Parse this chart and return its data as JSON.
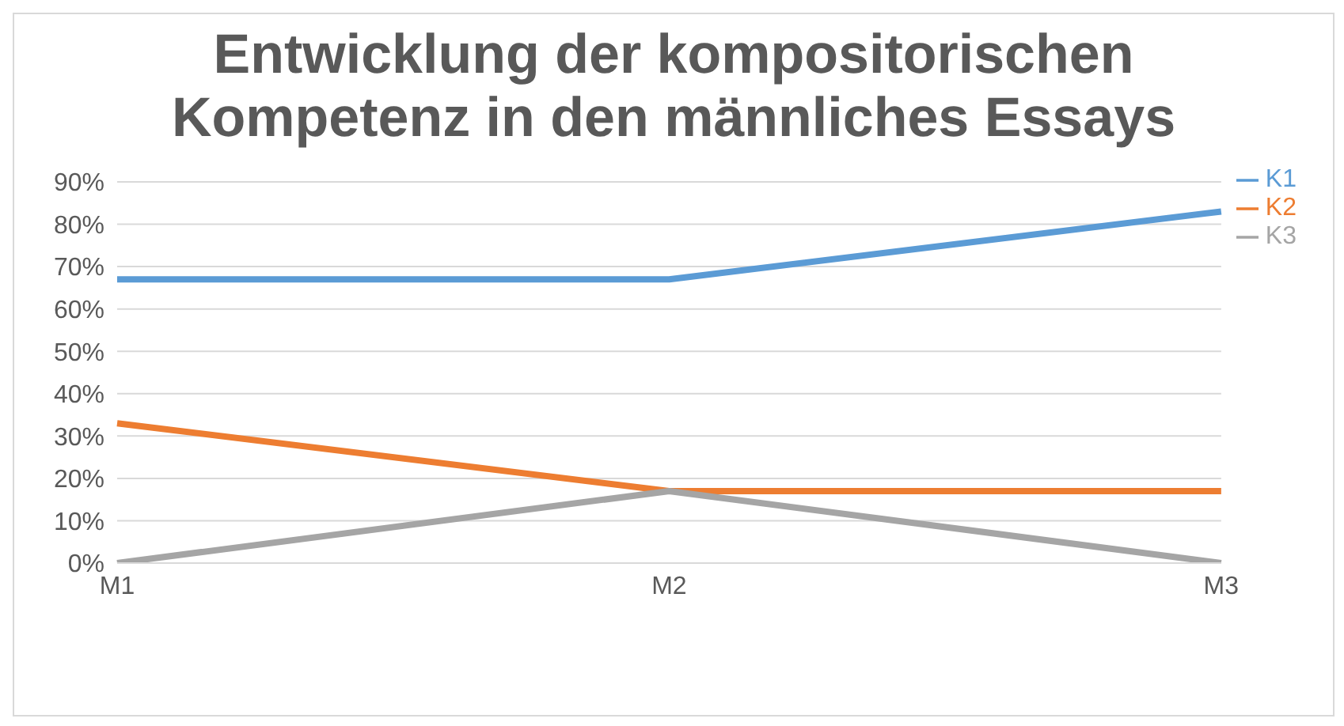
{
  "chart_data": {
    "type": "line",
    "title": "Entwicklung der kompositorischen Kompetenz in den männliches Essays",
    "categories": [
      "M1",
      "M2",
      "M3"
    ],
    "series": [
      {
        "name": "K1",
        "color": "#5b9bd5",
        "values": [
          67,
          67,
          83
        ]
      },
      {
        "name": "K2",
        "color": "#ed7d31",
        "values": [
          33,
          17,
          17
        ]
      },
      {
        "name": "K3",
        "color": "#a5a5a5",
        "values": [
          0,
          17,
          0
        ]
      }
    ],
    "ylim": [
      0,
      90
    ],
    "yticks": [
      {
        "value": 0,
        "label": "0%"
      },
      {
        "value": 10,
        "label": "10%"
      },
      {
        "value": 20,
        "label": "20%"
      },
      {
        "value": 30,
        "label": "30%"
      },
      {
        "value": 40,
        "label": "40%"
      },
      {
        "value": 50,
        "label": "50%"
      },
      {
        "value": 60,
        "label": "60%"
      },
      {
        "value": 70,
        "label": "70%"
      },
      {
        "value": 80,
        "label": "80%"
      },
      {
        "value": 90,
        "label": "90%"
      }
    ],
    "grid": "y",
    "legend": "top right",
    "marker": "none",
    "line_style": "solid"
  }
}
